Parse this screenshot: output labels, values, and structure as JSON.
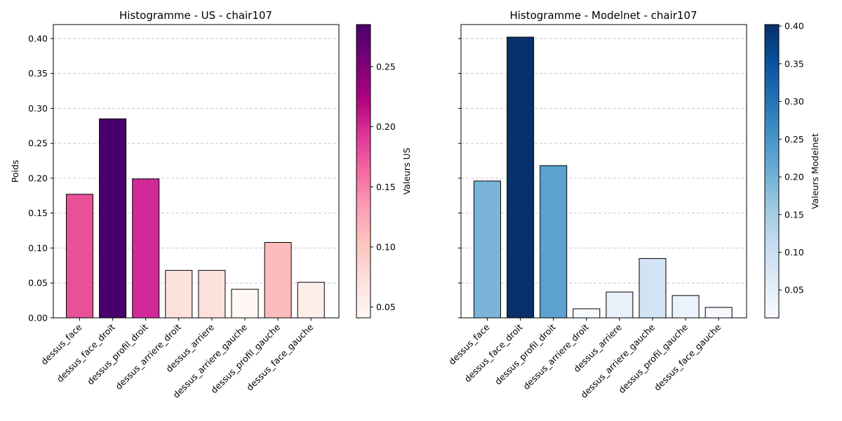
{
  "chart_data": [
    {
      "type": "bar",
      "title": "Histogramme - US - chair107",
      "ylabel": "Poids",
      "xlabel": "",
      "ylim": [
        0,
        0.42
      ],
      "yticks": [
        "0.00",
        "0.05",
        "0.10",
        "0.15",
        "0.20",
        "0.25",
        "0.30",
        "0.35",
        "0.40"
      ],
      "grid": "horizontal dashed",
      "categories": [
        "dessus_face",
        "dessus_face_droit",
        "dessus_profil_droit",
        "dessus_arriere_droit",
        "dessus_arriere",
        "dessus_arriere_gauche",
        "dessus_profil_gauche",
        "dessus_face_gauche"
      ],
      "values": [
        0.177,
        0.285,
        0.199,
        0.068,
        0.068,
        0.041,
        0.108,
        0.051
      ],
      "colors": [
        "#e7519a",
        "#4a006a",
        "#d1299a",
        "#fde1dd",
        "#fde1dd",
        "#fff7f3",
        "#fcbbbc",
        "#fdeeea"
      ],
      "colorbar": {
        "label": "Valeurs US",
        "range": [
          0.041,
          0.285
        ],
        "ticks": [
          "0.05",
          "0.10",
          "0.15",
          "0.20",
          "0.25"
        ],
        "colormap": [
          "#fff7f3",
          "#fde0dd",
          "#fcc5c0",
          "#fa9fb5",
          "#f768a1",
          "#dd3497",
          "#ae017e",
          "#7a0177",
          "#49006a"
        ]
      }
    },
    {
      "type": "bar",
      "title": "Histogramme - Modelnet - chair107",
      "ylabel": "",
      "xlabel": "",
      "ylim": [
        0,
        0.42
      ],
      "yticks": [],
      "grid": "horizontal dashed",
      "categories": [
        "dessus_face",
        "dessus_face_droit",
        "dessus_profil_droit",
        "dessus_arriere_droit",
        "dessus_arriere",
        "dessus_arriere_gauche",
        "dessus_profil_gauche",
        "dessus_face_gauche"
      ],
      "values": [
        0.196,
        0.402,
        0.218,
        0.013,
        0.037,
        0.085,
        0.032,
        0.015
      ],
      "colors": [
        "#7ab5d9",
        "#08306b",
        "#5aa2cf",
        "#f6fafe",
        "#e8f1fa",
        "#d2e3f3",
        "#eaf2fb",
        "#f5f9fe"
      ],
      "colorbar": {
        "label": "Valeurs Modelnet",
        "range": [
          0.013,
          0.402
        ],
        "ticks": [
          "0.05",
          "0.10",
          "0.15",
          "0.20",
          "0.25",
          "0.30",
          "0.35",
          "0.40"
        ],
        "colormap": [
          "#f7fbff",
          "#deebf7",
          "#c6dbef",
          "#9ecae1",
          "#6baed6",
          "#4292c6",
          "#2171b5",
          "#08519c",
          "#08306b"
        ]
      }
    }
  ]
}
